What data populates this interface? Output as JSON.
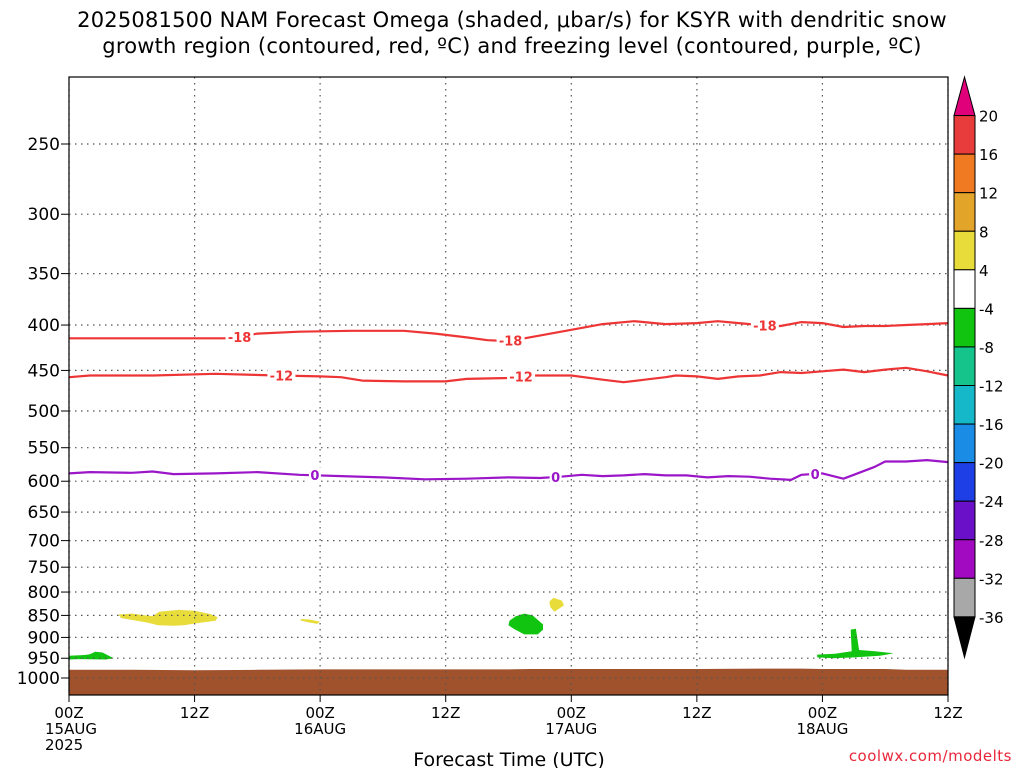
{
  "title_line1": "2025081500 NAM Forecast Omega (shaded, μbar/s) for KSYR with dendritic snow",
  "title_line2": "growth region (contoured, red, ºC) and freezing level (contoured, purple, ºC)",
  "credit": "coolwx.com/modelts",
  "chart_data": {
    "type": "contour",
    "xlabel": "Forecast Time (UTC)",
    "x_ticks": [
      {
        "hour": 0,
        "lines": [
          "00Z",
          "15AUG",
          "2025"
        ]
      },
      {
        "hour": 12,
        "lines": [
          "12Z"
        ]
      },
      {
        "hour": 24,
        "lines": [
          "00Z",
          "16AUG"
        ]
      },
      {
        "hour": 36,
        "lines": [
          "12Z"
        ]
      },
      {
        "hour": 48,
        "lines": [
          "00Z",
          "17AUG"
        ]
      },
      {
        "hour": 60,
        "lines": [
          "12Z"
        ]
      },
      {
        "hour": 72,
        "lines": [
          "00Z",
          "18AUG"
        ]
      },
      {
        "hour": 84,
        "lines": [
          "12Z"
        ]
      }
    ],
    "xlim": [
      0,
      84
    ],
    "ylabel": "",
    "y_scale": "log-pressure",
    "ylim": [
      1000,
      200
    ],
    "y_ticks": [
      250,
      300,
      350,
      400,
      450,
      500,
      550,
      600,
      650,
      700,
      750,
      800,
      850,
      900,
      950,
      1000
    ],
    "grid": true,
    "colorbar": {
      "unit": "μbar/s",
      "labels": [
        20,
        16,
        12,
        8,
        4,
        -4,
        -8,
        -12,
        -16,
        -20,
        -24,
        -28,
        -32,
        -36
      ],
      "colors": [
        "#e0007a",
        "#e83b3b",
        "#ef7a22",
        "#e3a42a",
        "#e8dc3a",
        "#ffffff",
        "#10c410",
        "#14c48a",
        "#14b8c8",
        "#1a8ce6",
        "#1f3fe6",
        "#6a10c8",
        "#a20ac2",
        "#a8a8a8",
        "#000000"
      ]
    },
    "contours": [
      {
        "value": -18,
        "color": "#ee3535",
        "points": [
          [
            0,
            414
          ],
          [
            6,
            414
          ],
          [
            12,
            414
          ],
          [
            15.5,
            414
          ],
          [
            18,
            409
          ],
          [
            22,
            407
          ],
          [
            27,
            406
          ],
          [
            32,
            406
          ],
          [
            35,
            409
          ],
          [
            38,
            413
          ],
          [
            40,
            416
          ],
          [
            42,
            417
          ],
          [
            44,
            413
          ],
          [
            48,
            405
          ],
          [
            51,
            399
          ],
          [
            54,
            396
          ],
          [
            57,
            399
          ],
          [
            60,
            398
          ],
          [
            62,
            396
          ],
          [
            64,
            398
          ],
          [
            66,
            400
          ],
          [
            68,
            401
          ],
          [
            70,
            397
          ],
          [
            72,
            398
          ],
          [
            74,
            402
          ],
          [
            76,
            401
          ],
          [
            78,
            401
          ],
          [
            80,
            400
          ],
          [
            82,
            399
          ],
          [
            84,
            398
          ]
        ],
        "labels": [
          {
            "hour": 16.3,
            "text": "-18"
          },
          {
            "hour": 42.2,
            "text": "-18"
          },
          {
            "hour": 66.5,
            "text": "-18"
          }
        ]
      },
      {
        "value": -12,
        "color": "#ee3535",
        "points": [
          [
            0,
            458
          ],
          [
            2,
            456
          ],
          [
            8,
            456
          ],
          [
            14,
            454
          ],
          [
            20,
            456
          ],
          [
            24,
            457
          ],
          [
            26,
            458
          ],
          [
            28,
            462
          ],
          [
            32,
            463
          ],
          [
            36,
            463
          ],
          [
            38,
            460
          ],
          [
            42,
            459
          ],
          [
            44,
            456
          ],
          [
            48,
            456
          ],
          [
            51,
            461
          ],
          [
            53,
            464
          ],
          [
            55,
            461
          ],
          [
            57,
            458
          ],
          [
            58,
            456
          ],
          [
            60,
            457
          ],
          [
            62,
            460
          ],
          [
            64,
            457
          ],
          [
            66,
            456
          ],
          [
            68,
            452
          ],
          [
            70,
            453
          ],
          [
            72,
            451
          ],
          [
            74,
            449
          ],
          [
            76,
            452
          ],
          [
            78,
            449
          ],
          [
            80,
            447
          ],
          [
            82,
            451
          ],
          [
            84,
            456
          ]
        ],
        "labels": [
          {
            "hour": 20.3,
            "text": "-12"
          },
          {
            "hour": 43.2,
            "text": "-12"
          }
        ]
      },
      {
        "value": 0,
        "color": "#9b16c8",
        "points": [
          [
            0,
            588
          ],
          [
            2,
            586
          ],
          [
            6,
            587
          ],
          [
            8,
            585
          ],
          [
            10,
            589
          ],
          [
            14,
            588
          ],
          [
            18,
            586
          ],
          [
            22,
            590
          ],
          [
            26,
            592
          ],
          [
            30,
            594
          ],
          [
            34,
            597
          ],
          [
            38,
            596
          ],
          [
            42,
            594
          ],
          [
            45,
            595
          ],
          [
            47,
            593
          ],
          [
            49,
            590
          ],
          [
            51,
            592
          ],
          [
            53,
            591
          ],
          [
            55,
            589
          ],
          [
            57,
            591
          ],
          [
            59,
            591
          ],
          [
            61,
            594
          ],
          [
            63,
            592
          ],
          [
            65,
            593
          ],
          [
            67,
            596
          ],
          [
            69,
            598
          ],
          [
            70,
            590
          ],
          [
            72,
            588
          ],
          [
            74,
            596
          ],
          [
            75,
            590
          ],
          [
            77,
            578
          ],
          [
            78,
            570
          ],
          [
            80,
            570
          ],
          [
            82,
            568
          ],
          [
            84,
            571
          ]
        ],
        "labels": [
          {
            "hour": 23.5,
            "text": "0"
          },
          {
            "hour": 46.5,
            "text": "0"
          },
          {
            "hour": 71.3,
            "text": "0"
          }
        ]
      }
    ],
    "omega_regions": [
      {
        "range": "4 to 8",
        "color": "#e8dc3a",
        "outline": [
          [
            4.7,
            848
          ],
          [
            6,
            846
          ],
          [
            8,
            852
          ],
          [
            8.6,
            842
          ],
          [
            10.5,
            838
          ],
          [
            12,
            840
          ],
          [
            13.5,
            847
          ],
          [
            14.2,
            854
          ],
          [
            14,
            862
          ],
          [
            12,
            868
          ],
          [
            11,
            872
          ],
          [
            10,
            873
          ],
          [
            8.5,
            872
          ],
          [
            7.5,
            866
          ],
          [
            6,
            860
          ],
          [
            5,
            856
          ]
        ]
      },
      {
        "range": "4 to 8",
        "color": "#e8dc3a",
        "outline": [
          [
            22.1,
            858
          ],
          [
            23,
            859
          ],
          [
            24,
            864
          ],
          [
            23.7,
            869
          ],
          [
            22.8,
            865
          ],
          [
            22.2,
            862
          ]
        ]
      },
      {
        "range": "4 to 8",
        "color": "#e8dc3a",
        "outline": [
          [
            46.3,
            812
          ],
          [
            47.1,
            818
          ],
          [
            47.3,
            828
          ],
          [
            46.4,
            842
          ],
          [
            46,
            832
          ],
          [
            45.9,
            820
          ]
        ]
      },
      {
        "range": "-8 to -4",
        "color": "#10c410",
        "outline": [
          [
            43.5,
            846
          ],
          [
            44.3,
            850
          ],
          [
            45,
            864
          ],
          [
            45.3,
            870
          ],
          [
            45.3,
            882
          ],
          [
            44.8,
            893
          ],
          [
            43.5,
            893
          ],
          [
            42.5,
            880
          ],
          [
            42,
            872
          ],
          [
            42.1,
            862
          ],
          [
            42.7,
            852
          ]
        ]
      },
      {
        "range": "-8 to -4",
        "color": "#10c410",
        "outline": [
          [
            0,
            944
          ],
          [
            1.5,
            942
          ],
          [
            2,
            940
          ],
          [
            2.5,
            934
          ],
          [
            3.2,
            936
          ],
          [
            3.8,
            944
          ],
          [
            4.3,
            950
          ],
          [
            3.5,
            953
          ],
          [
            1,
            952
          ],
          [
            0,
            953
          ]
        ]
      },
      {
        "range": "-8 to -4",
        "color": "#10c410",
        "outline": [
          [
            71.5,
            941
          ],
          [
            73.2,
            939
          ],
          [
            74.8,
            933
          ],
          [
            74.7,
            882
          ],
          [
            75.2,
            880
          ],
          [
            75.5,
            930
          ],
          [
            77,
            933
          ],
          [
            78.8,
            938
          ],
          [
            77.5,
            944
          ],
          [
            75,
            948
          ],
          [
            73,
            950
          ],
          [
            71.5,
            948
          ]
        ]
      }
    ],
    "terrain": {
      "color": "#a0522d",
      "top": [
        [
          0,
          979
        ],
        [
          6,
          979
        ],
        [
          12,
          980
        ],
        [
          18,
          979
        ],
        [
          24,
          978
        ],
        [
          30,
          978
        ],
        [
          36,
          978
        ],
        [
          42,
          978
        ],
        [
          44,
          977
        ],
        [
          48,
          977
        ],
        [
          54,
          977
        ],
        [
          60,
          977
        ],
        [
          66,
          976
        ],
        [
          70,
          976
        ],
        [
          72,
          977
        ],
        [
          78,
          977
        ],
        [
          80,
          979
        ],
        [
          84,
          979
        ]
      ]
    }
  }
}
